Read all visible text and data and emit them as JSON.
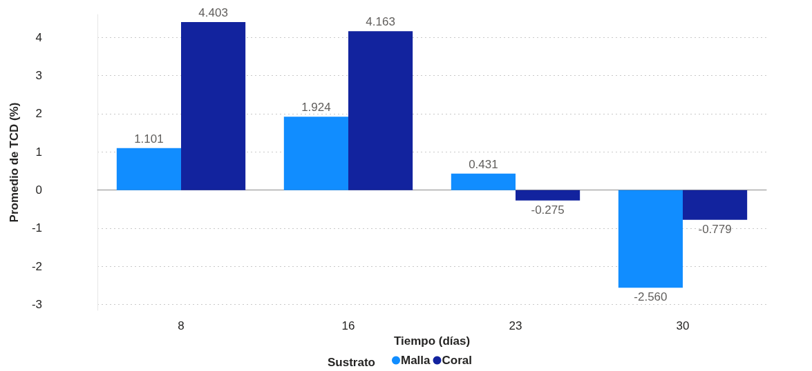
{
  "chart_data": {
    "type": "bar",
    "xlabel": "Tiempo (días)",
    "ylabel": "Promedio de TCD (%)",
    "legend_title": "Sustrato",
    "categories": [
      "8",
      "16",
      "23",
      "30"
    ],
    "series": [
      {
        "name": "Malla",
        "color": "#118dff",
        "values": [
          1.101,
          1.924,
          0.431,
          -2.56
        ],
        "value_labels": [
          "1.101",
          "1.924",
          "0.431",
          "-2.560"
        ]
      },
      {
        "name": "Coral",
        "color": "#12239e",
        "values": [
          4.403,
          4.163,
          -0.275,
          -0.779
        ],
        "value_labels": [
          "4.403",
          "4.163",
          "-0.275",
          "-0.779"
        ]
      }
    ],
    "ylim": [
      -3.15,
      4.6
    ],
    "yticks": [
      -3,
      -2,
      -1,
      0,
      1,
      2,
      3,
      4
    ],
    "grid": "y",
    "legend": "bottom"
  }
}
